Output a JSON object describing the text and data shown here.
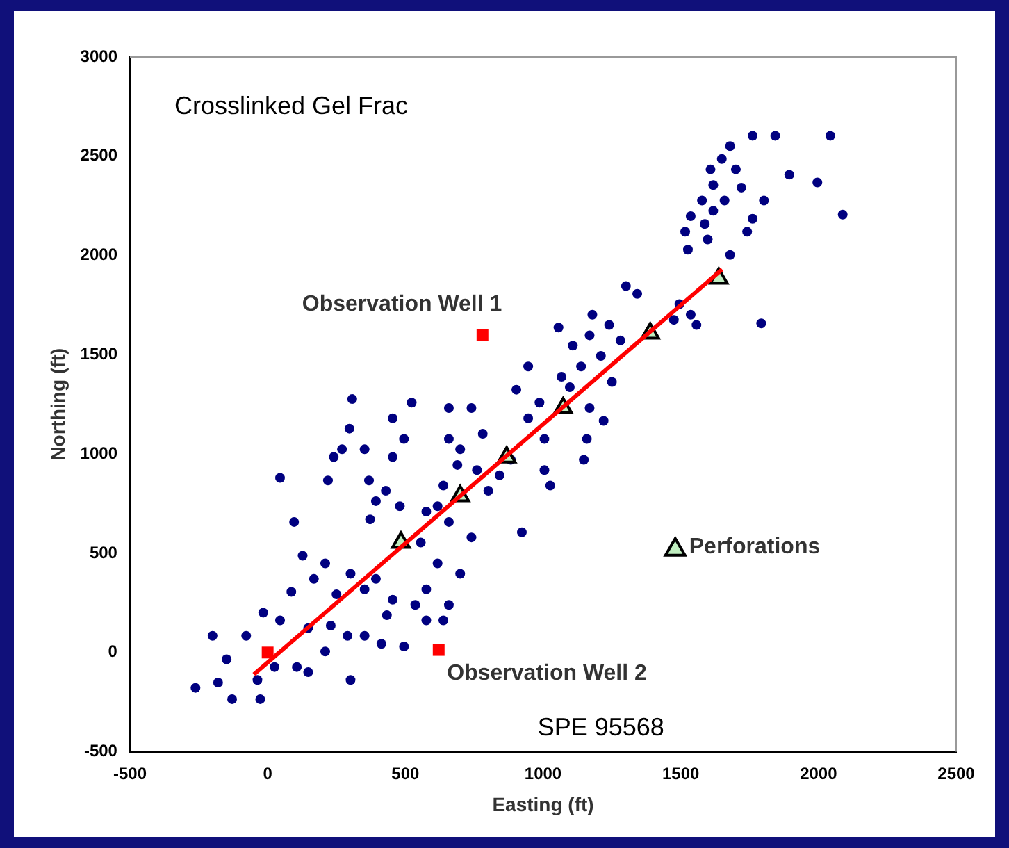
{
  "chart_data": {
    "type": "scatter",
    "title": "Crosslinked Gel Frac",
    "xlabel": "Easting (ft)",
    "ylabel": "Northing (ft)",
    "xlim": [
      -500,
      2500
    ],
    "xticks": [
      -500,
      0,
      500,
      1000,
      1500,
      2000,
      2500
    ],
    "ylim": [
      -500,
      3000
    ],
    "yticks": [
      -500,
      0,
      500,
      1000,
      1500,
      2000,
      2500,
      3000
    ],
    "grid": false,
    "legend": "right",
    "annotations": [
      {
        "text": "Observation Well 1",
        "x": 780,
        "y": 1598
      },
      {
        "text": "Observation Well 2",
        "x": 621,
        "y": 13
      },
      "SPE 95568"
    ],
    "series": [
      {
        "type": "scatter",
        "marker": "circle",
        "color": "#000080",
        "x": [
          1761,
          1843,
          2043,
          1679,
          1649,
          1608,
          1700,
          1894,
          1996,
          1618,
          1720,
          1659,
          1577,
          1802,
          2088,
          1536,
          1618,
          1761,
          1587,
          1516,
          1741,
          1598,
          1526,
          1679,
          1792,
          1301,
          1342,
          1495,
          1536,
          1557,
          1475,
          1179,
          1056,
          1240,
          1169,
          1281,
          1108,
          1210,
          1138,
          1250,
          1067,
          1097,
          946,
          987,
          1169,
          1220,
          1005,
          946,
          903,
          1159,
          1148,
          1005,
          1026,
          923,
          740,
          658,
          781,
          699,
          760,
          638,
          801,
          576,
          658,
          740,
          556,
          617,
          699,
          576,
          658,
          523,
          454,
          307,
          297,
          495,
          270,
          352,
          240,
          454,
          368,
          429,
          219,
          45,
          393,
          480,
          96,
          372,
          127,
          209,
          301,
          393,
          168,
          86,
          250,
          352,
          454,
          536,
          433,
          576,
          638,
          495,
          413,
          -16,
          45,
          147,
          229,
          290,
          -78,
          -149,
          -200,
          -262,
          -180,
          -129,
          -27,
          -37,
          106,
          147,
          25,
          301,
          209,
          352,
          617,
          689,
          842,
          883,
          658
        ],
        "values": [
          2603,
          2603,
          2603,
          2551,
          2486,
          2434,
          2434,
          2407,
          2368,
          2355,
          2342,
          2277,
          2277,
          2277,
          2206,
          2198,
          2225,
          2185,
          2159,
          2120,
          2120,
          2081,
          2029,
          2003,
          1658,
          1846,
          1807,
          1755,
          1702,
          1650,
          1676,
          1702,
          1637,
          1650,
          1598,
          1572,
          1546,
          1494,
          1441,
          1363,
          1389,
          1337,
          1441,
          1259,
          1232,
          1167,
          1076,
          1180,
          1324,
          1076,
          971,
          919,
          841,
          606,
          1232,
          1232,
          1102,
          1024,
          919,
          841,
          815,
          710,
          658,
          580,
          554,
          449,
          397,
          319,
          240,
          1259,
          1180,
          1277,
          1128,
          1076,
          1024,
          1024,
          985,
          985,
          867,
          815,
          867,
          880,
          763,
          737,
          658,
          671,
          488,
          449,
          397,
          371,
          371,
          306,
          293,
          319,
          266,
          240,
          188,
          162,
          162,
          31,
          44,
          201,
          162,
          123,
          136,
          84,
          84,
          -34,
          84,
          -178,
          -151,
          -235,
          -235,
          -138,
          -73,
          -99,
          -73,
          -138,
          5,
          84,
          737,
          945,
          893,
          971,
          1076
        ]
      },
      {
        "type": "line",
        "marker": "none",
        "color": "#ff0000",
        "x": [
          -50,
          1650
        ],
        "values": [
          -110,
          1930
        ]
      },
      {
        "type": "scatter",
        "marker": "square",
        "color": "#ff0000",
        "x": [
          0,
          780,
          621
        ],
        "values": [
          0,
          1598,
          13
        ]
      },
      {
        "type": "scatter",
        "name": "Perforations",
        "marker": "triangle",
        "color": "#c0eec0",
        "x": [
          484,
          699,
          868,
          1073,
          1389,
          1638
        ],
        "values": [
          554,
          789,
          984,
          1232,
          1608,
          1885
        ]
      }
    ]
  }
}
